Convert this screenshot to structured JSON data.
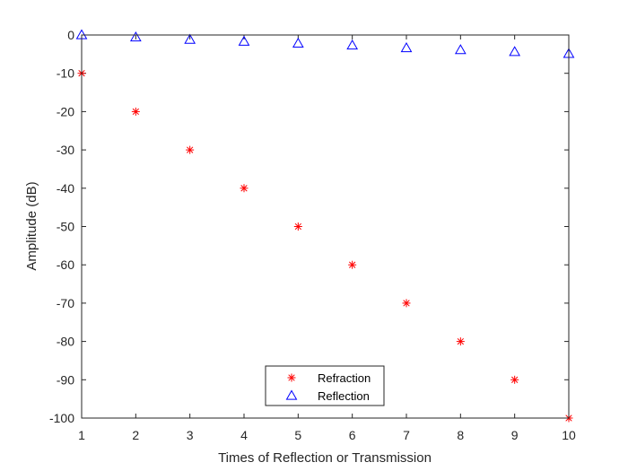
{
  "chart_data": {
    "type": "scatter",
    "xlabel": "Times of Reflection or Transmission",
    "ylabel": "Amplitude (dB)",
    "xlim": [
      1,
      10
    ],
    "ylim": [
      -100,
      0
    ],
    "xticks": [
      "1",
      "2",
      "3",
      "4",
      "5",
      "6",
      "7",
      "8",
      "9",
      "10"
    ],
    "yticks": [
      "0",
      "-10",
      "-20",
      "-30",
      "-40",
      "-50",
      "-60",
      "-70",
      "-80",
      "-90",
      "-100"
    ],
    "grid": false,
    "legend_position": "bottom-center",
    "series": [
      {
        "name": "Refraction",
        "marker": "asterisk",
        "color": "#ff0000",
        "x": [
          1,
          2,
          3,
          4,
          5,
          6,
          7,
          8,
          9,
          10
        ],
        "y": [
          -10,
          -20,
          -30,
          -40,
          -50,
          -60,
          -70,
          -80,
          -90,
          -100
        ]
      },
      {
        "name": "Reflection",
        "marker": "triangle",
        "color": "#0000ff",
        "x": [
          1,
          2,
          3,
          4,
          5,
          6,
          7,
          8,
          9,
          10
        ],
        "y": [
          0,
          -0.6,
          -1.2,
          -1.7,
          -2.2,
          -2.7,
          -3.4,
          -3.9,
          -4.4,
          -4.9
        ]
      }
    ]
  }
}
